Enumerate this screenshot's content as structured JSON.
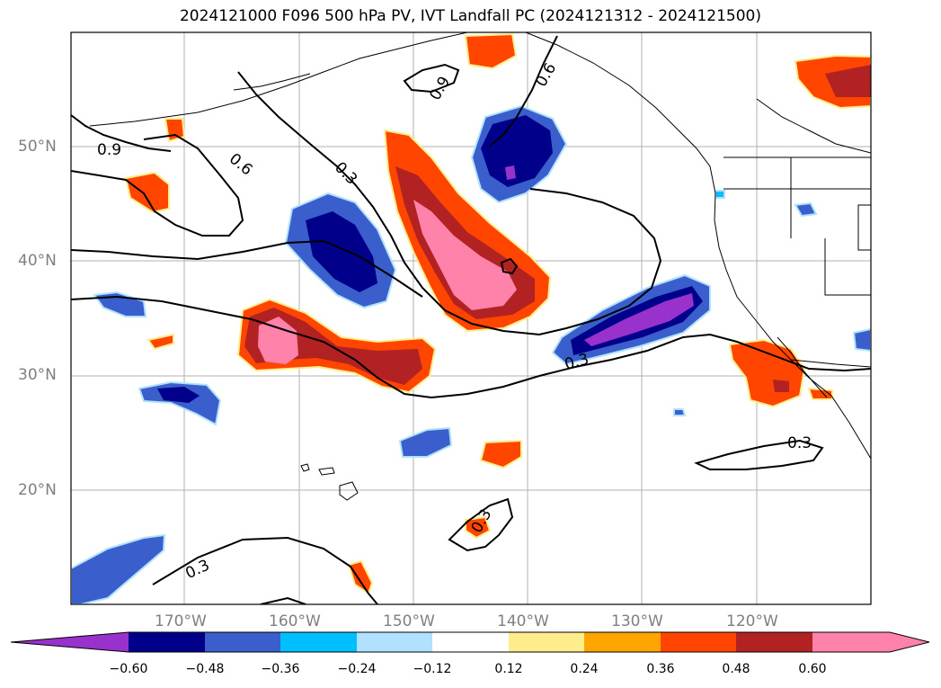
{
  "title": "2024121000 F096 500 hPa PV, IVT Landfall PC (2024121312 - 2024121500)",
  "lat_labels": [
    "50°N",
    "40°N",
    "30°N",
    "20°N"
  ],
  "lon_labels": [
    "170°W",
    "160°W",
    "150°W",
    "140°W",
    "130°W",
    "120°W"
  ],
  "contour_labels": [
    "0.9",
    "0.6",
    "0.3",
    "0.9",
    "0.6",
    "0.3",
    "0.3",
    "0.3",
    "0.3"
  ],
  "colorbar": {
    "ticks": [
      "−0.60",
      "−0.48",
      "−0.36",
      "−0.24",
      "−0.12",
      "0.12",
      "0.24",
      "0.36",
      "0.48",
      "0.60"
    ],
    "colors": [
      "#9932cc",
      "#00008b",
      "#3a5fcd",
      "#00bfff",
      "#b0e2ff",
      "#ffffff",
      "#ffec8b",
      "#ffa500",
      "#ff4500",
      "#b22222",
      "#ff82ab"
    ]
  },
  "colors": {
    "orange_red": "#ff4500",
    "firebrick": "#b22222",
    "pink": "#ff82ab",
    "orange": "#ffa500",
    "light_yellow": "#ffec8b",
    "dark_blue": "#00008b",
    "royal_blue": "#3a5fcd",
    "deep_sky": "#00bfff",
    "light_sky": "#b0e2ff",
    "purple": "#9932cc",
    "gridline": "#b0b0b0"
  }
}
